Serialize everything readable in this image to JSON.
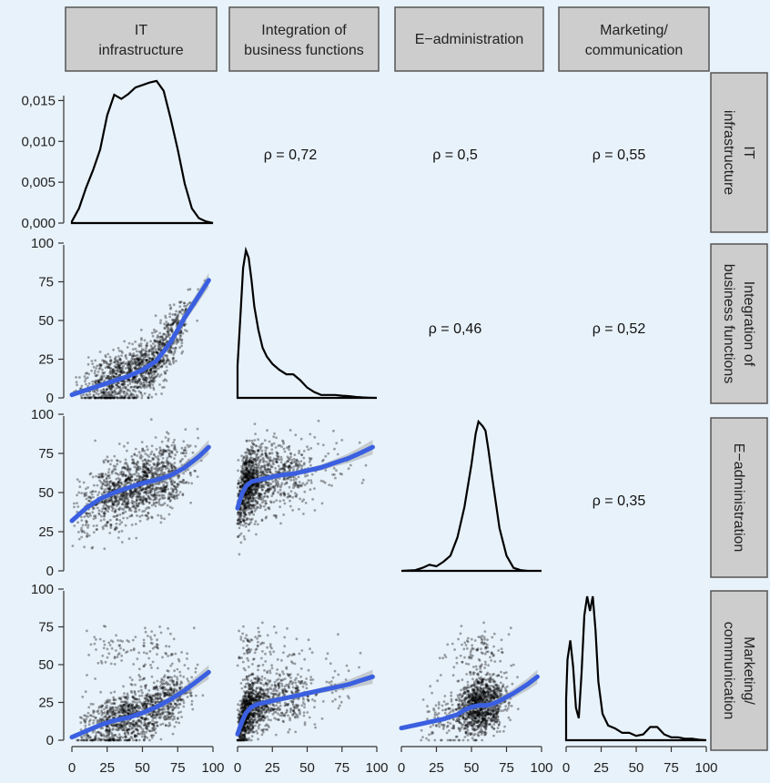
{
  "chart_data": {
    "type": "scatter",
    "description_type": "pairs plot (scatterplot matrix)",
    "variables": [
      "IT infrastructure",
      "Integration of business functions",
      "E−administration",
      "Marketing/ communication"
    ],
    "column_labels": [
      [
        "IT",
        "infrastructure"
      ],
      [
        "Integration of",
        "business functions"
      ],
      [
        "E−administration"
      ],
      [
        "Marketing/",
        "communication"
      ]
    ],
    "row_labels": [
      [
        "IT",
        "infrastructure"
      ],
      [
        "Integration of",
        "business functions"
      ],
      [
        "E−administration"
      ],
      [
        "Marketing/",
        "communication"
      ]
    ],
    "x_ticks": [
      "0",
      "25",
      "50",
      "75",
      "100"
    ],
    "xlim": [
      0,
      100
    ],
    "y_ticks_scatter": [
      "0",
      "25",
      "50",
      "75",
      "100"
    ],
    "ylim_scatter": [
      0,
      100
    ],
    "density_y_ticks": [
      "0,000",
      "0,005",
      "0,010",
      "0,015"
    ],
    "density_ylim": [
      0,
      0.0175
    ],
    "correlations": [
      {
        "row": 0,
        "col": 1,
        "label": "ρ = 0,72",
        "value": 0.72
      },
      {
        "row": 0,
        "col": 2,
        "label": "ρ = 0,5",
        "value": 0.5
      },
      {
        "row": 0,
        "col": 3,
        "label": "ρ = 0,55",
        "value": 0.55
      },
      {
        "row": 1,
        "col": 2,
        "label": "ρ = 0,46",
        "value": 0.46
      },
      {
        "row": 1,
        "col": 3,
        "label": "ρ = 0,52",
        "value": 0.52
      },
      {
        "row": 2,
        "col": 3,
        "label": "ρ = 0,35",
        "value": 0.35
      }
    ],
    "densities": [
      {
        "var": "IT infrastructure",
        "x": [
          0,
          5,
          10,
          15,
          20,
          25,
          30,
          35,
          40,
          45,
          50,
          55,
          60,
          65,
          70,
          75,
          80,
          85,
          90,
          95,
          100
        ],
        "y": [
          0.0002,
          0.0018,
          0.0043,
          0.0065,
          0.009,
          0.0132,
          0.0157,
          0.0152,
          0.0158,
          0.0166,
          0.0169,
          0.0172,
          0.0174,
          0.0162,
          0.0128,
          0.009,
          0.0048,
          0.0018,
          0.0006,
          0.0002,
          0.0
        ]
      },
      {
        "var": "Integration of business functions",
        "x": [
          0,
          2,
          4,
          6,
          8,
          10,
          12,
          15,
          18,
          21,
          25,
          30,
          35,
          40,
          45,
          50,
          55,
          60,
          65,
          70,
          75,
          80,
          85,
          90,
          95,
          100
        ],
        "y": [
          0.22,
          0.55,
          0.88,
          1.0,
          0.95,
          0.8,
          0.62,
          0.46,
          0.34,
          0.28,
          0.23,
          0.19,
          0.16,
          0.16,
          0.12,
          0.07,
          0.04,
          0.02,
          0.02,
          0.02,
          0.015,
          0.012,
          0.006,
          0.003,
          0.001,
          0.0
        ]
      },
      {
        "var": "E−administration",
        "x": [
          0,
          10,
          15,
          20,
          25,
          30,
          35,
          40,
          45,
          50,
          53,
          55,
          58,
          60,
          62,
          65,
          70,
          75,
          80,
          85,
          90,
          95,
          100
        ],
        "y": [
          0.0,
          0.005,
          0.02,
          0.04,
          0.03,
          0.06,
          0.1,
          0.22,
          0.42,
          0.7,
          0.9,
          0.98,
          0.95,
          0.92,
          0.8,
          0.6,
          0.28,
          0.1,
          0.02,
          0.005,
          0.0,
          0.0,
          0.0
        ]
      },
      {
        "var": "Marketing/ communication",
        "x": [
          0,
          1,
          3,
          5,
          7,
          9,
          11,
          13,
          15,
          17,
          19,
          21,
          23,
          26,
          30,
          35,
          40,
          45,
          50,
          55,
          60,
          65,
          70,
          75,
          80,
          85,
          90,
          95,
          100
        ],
        "y": [
          0.28,
          0.55,
          0.68,
          0.5,
          0.22,
          0.15,
          0.45,
          0.85,
          0.98,
          0.88,
          0.98,
          0.75,
          0.4,
          0.18,
          0.1,
          0.08,
          0.05,
          0.05,
          0.03,
          0.04,
          0.09,
          0.09,
          0.04,
          0.02,
          0.02,
          0.01,
          0.01,
          0.003,
          0.0
        ]
      }
    ],
    "smooth_lines": [
      {
        "row": 1,
        "col": 0,
        "x": [
          0,
          10,
          20,
          30,
          40,
          50,
          60,
          70,
          80,
          90,
          97
        ],
        "y": [
          2,
          5,
          8,
          11,
          14,
          18,
          24,
          36,
          52,
          66,
          76
        ]
      },
      {
        "row": 2,
        "col": 0,
        "x": [
          0,
          10,
          20,
          30,
          40,
          50,
          60,
          70,
          80,
          90,
          97
        ],
        "y": [
          32,
          40,
          46,
          50,
          53,
          56,
          58,
          61,
          66,
          73,
          79
        ]
      },
      {
        "row": 2,
        "col": 1,
        "x": [
          0,
          3,
          6,
          10,
          15,
          20,
          30,
          40,
          50,
          60,
          70,
          80,
          90,
          97
        ],
        "y": [
          40,
          49,
          54,
          57,
          58,
          59,
          61,
          62,
          64,
          66,
          69,
          72,
          76,
          79
        ]
      },
      {
        "row": 3,
        "col": 0,
        "x": [
          0,
          10,
          20,
          30,
          40,
          50,
          60,
          70,
          80,
          90,
          97
        ],
        "y": [
          2,
          6,
          10,
          13,
          15,
          18,
          22,
          27,
          33,
          40,
          45
        ]
      },
      {
        "row": 3,
        "col": 1,
        "x": [
          0,
          3,
          6,
          10,
          15,
          20,
          30,
          40,
          50,
          60,
          70,
          80,
          90,
          97
        ],
        "y": [
          4,
          12,
          18,
          22,
          24,
          25,
          27,
          29,
          31,
          33,
          35,
          37,
          40,
          42
        ]
      },
      {
        "row": 3,
        "col": 2,
        "x": [
          0,
          10,
          20,
          30,
          40,
          45,
          50,
          55,
          60,
          65,
          70,
          80,
          90,
          97
        ],
        "y": [
          8,
          10,
          12,
          14,
          17,
          20,
          22,
          23,
          23,
          24,
          26,
          31,
          37,
          42
        ]
      }
    ],
    "grid": false
  }
}
